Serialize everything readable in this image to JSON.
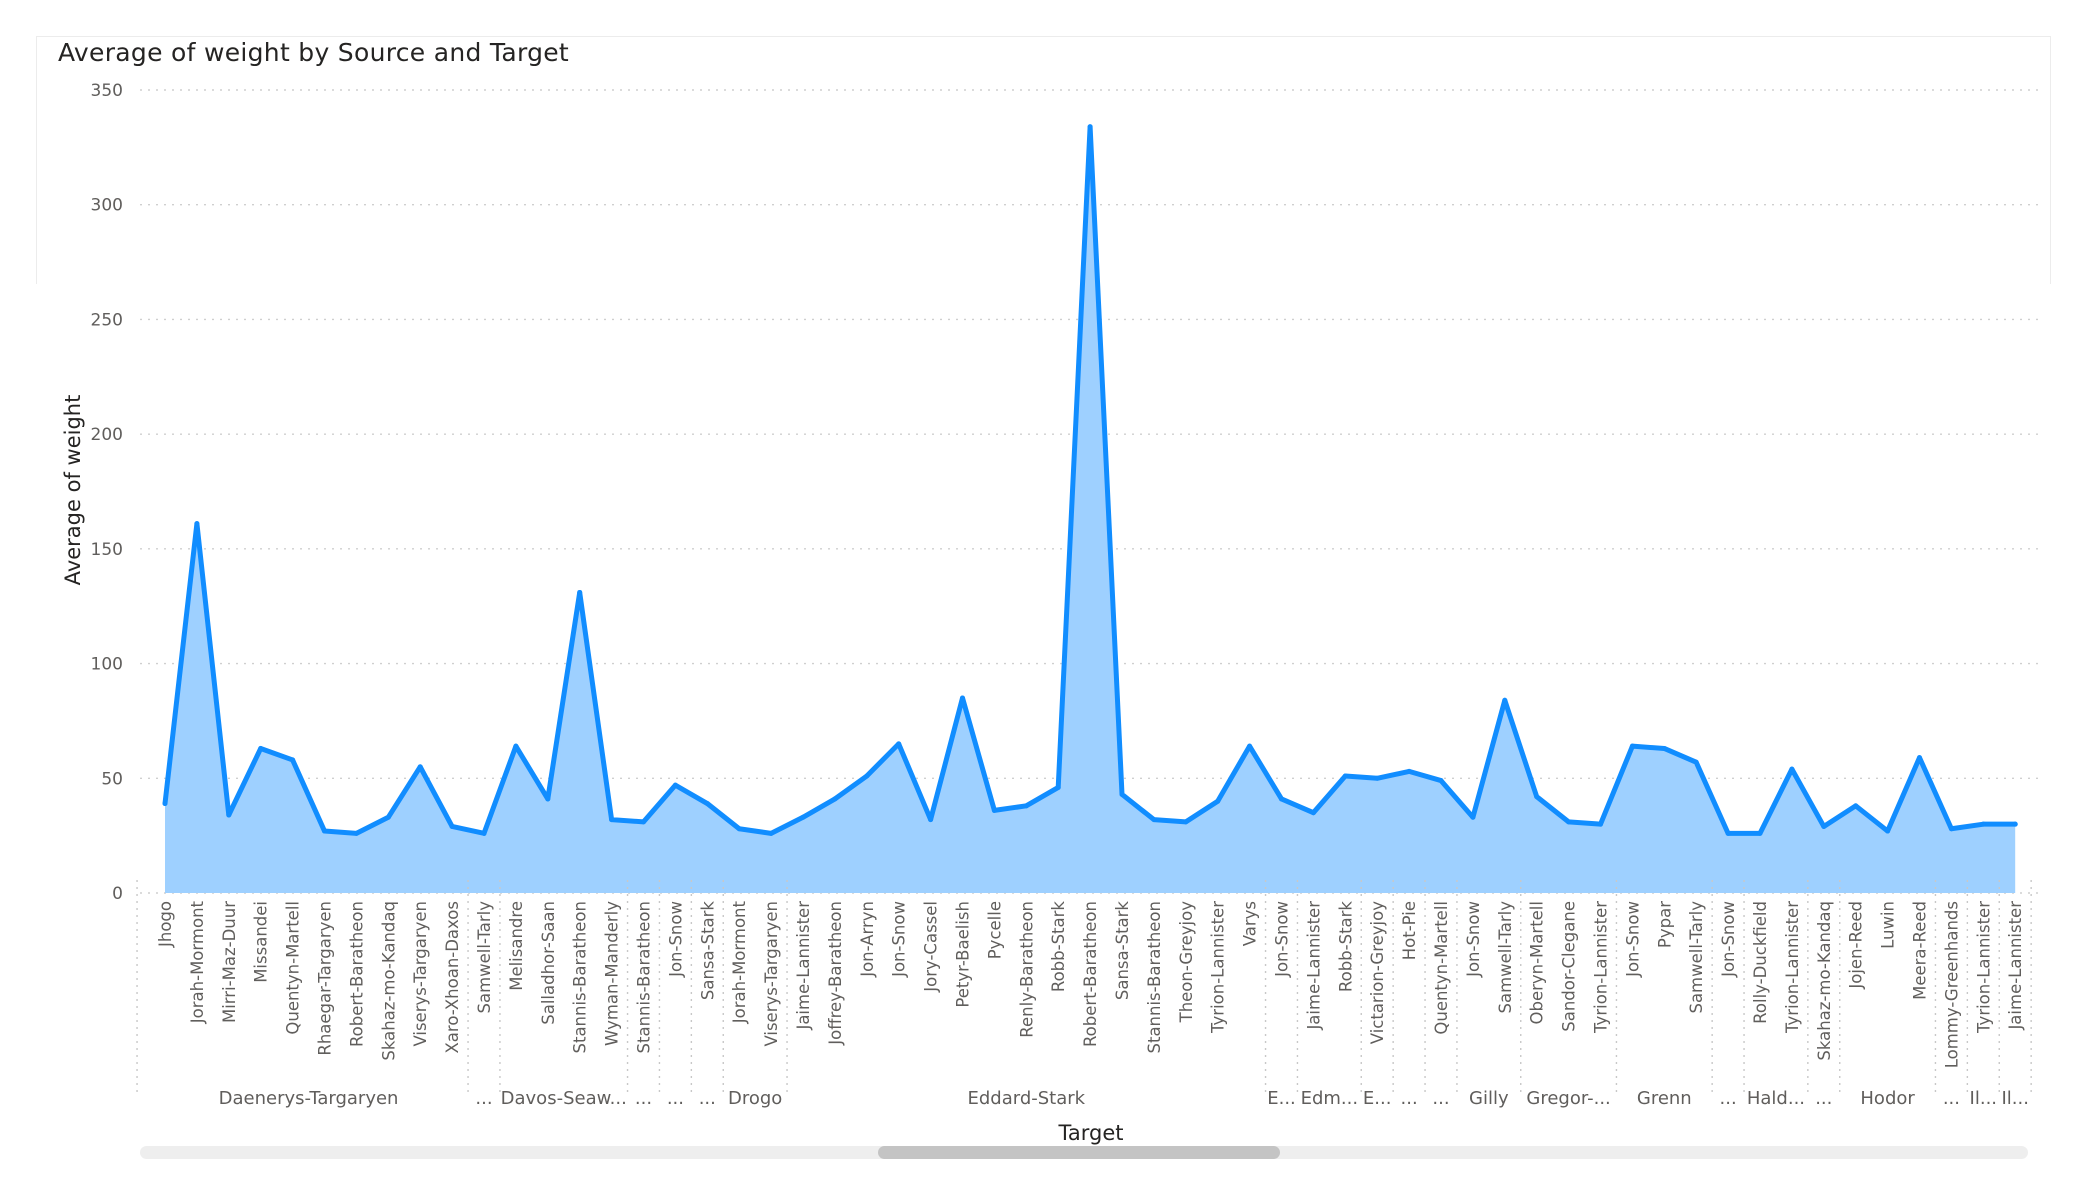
{
  "chart_data": {
    "type": "area",
    "title": "Average of weight by Source and Target",
    "xlabel": "Target",
    "ylabel": "Average of weight",
    "ylim": [
      0,
      350
    ],
    "yticks": [
      0,
      50,
      100,
      150,
      200,
      250,
      300,
      350
    ],
    "grid": true,
    "line_color": "#118DFF",
    "fill_color": "#9ED0FF",
    "categories": [
      "Jhogo",
      "Jorah-Mormont",
      "Mirri-Maz-Duur",
      "Missandei",
      "Quentyn-Martell",
      "Rhaegar-Targaryen",
      "Robert-Baratheon",
      "Skahaz-mo-Kandaq",
      "Viserys-Targaryen",
      "Xaro-Xhoan-Daxos",
      "Samwell-Tarly",
      "Melisandre",
      "Salladhor-Saan",
      "Stannis-Baratheon",
      "Wyman-Manderly",
      "Stannis-Baratheon",
      "Jon-Snow",
      "Sansa-Stark",
      "Jorah-Mormont",
      "Viserys-Targaryen",
      "Jaime-Lannister",
      "Joffrey-Baratheon",
      "Jon-Arryn",
      "Jon-Snow",
      "Jory-Cassel",
      "Petyr-Baelish",
      "Pycelle",
      "Renly-Baratheon",
      "Robb-Stark",
      "Robert-Baratheon",
      "Sansa-Stark",
      "Stannis-Baratheon",
      "Theon-Greyjoy",
      "Tyrion-Lannister",
      "Varys",
      "Jon-Snow",
      "Jaime-Lannister",
      "Robb-Stark",
      "Victarion-Greyjoy",
      "Hot-Pie",
      "Quentyn-Martell",
      "Jon-Snow",
      "Samwell-Tarly",
      "Oberyn-Martell",
      "Sandor-Clegane",
      "Tyrion-Lannister",
      "Jon-Snow",
      "Pypar",
      "Samwell-Tarly",
      "Jon-Snow",
      "Rolly-Duckfield",
      "Tyrion-Lannister",
      "Skahaz-mo-Kandaq",
      "Jojen-Reed",
      "Luwin",
      "Meera-Reed",
      "Lommy-Greenhands",
      "Tyrion-Lannister",
      "Jaime-Lannister"
    ],
    "values": [
      39,
      161,
      34,
      63,
      58,
      27,
      26,
      33,
      55,
      29,
      26,
      64,
      41,
      131,
      32,
      31,
      47,
      39,
      28,
      26,
      33,
      41,
      51,
      65,
      32,
      85,
      36,
      38,
      46,
      334,
      43,
      32,
      31,
      40,
      64,
      41,
      35,
      51,
      50,
      53,
      49,
      33,
      84,
      42,
      31,
      30,
      64,
      63,
      57,
      26,
      26,
      54,
      29,
      38,
      27,
      59,
      28,
      30,
      30
    ],
    "source_groups": [
      {
        "label": "Daenerys-Targaryen",
        "count": 10
      },
      {
        "label": "...",
        "count": 1
      },
      {
        "label": "Davos-Seaw...",
        "count": 4
      },
      {
        "label": "...",
        "count": 1
      },
      {
        "label": "...",
        "count": 1
      },
      {
        "label": "...",
        "count": 1
      },
      {
        "label": "Drogo",
        "count": 2
      },
      {
        "label": "Eddard-Stark",
        "count": 15
      },
      {
        "label": "E...",
        "count": 1
      },
      {
        "label": "Edm...",
        "count": 2
      },
      {
        "label": "E...",
        "count": 1
      },
      {
        "label": "...",
        "count": 1
      },
      {
        "label": "...",
        "count": 1
      },
      {
        "label": "Gilly",
        "count": 2
      },
      {
        "label": "Gregor-...",
        "count": 3
      },
      {
        "label": "Grenn",
        "count": 3
      },
      {
        "label": "...",
        "count": 1
      },
      {
        "label": "Hald...",
        "count": 2
      },
      {
        "label": "...",
        "count": 1
      },
      {
        "label": "Hodor",
        "count": 3
      },
      {
        "label": "...",
        "count": 1
      },
      {
        "label": "Il...",
        "count": 1
      },
      {
        "label": "Il...",
        "count": 1
      }
    ]
  }
}
